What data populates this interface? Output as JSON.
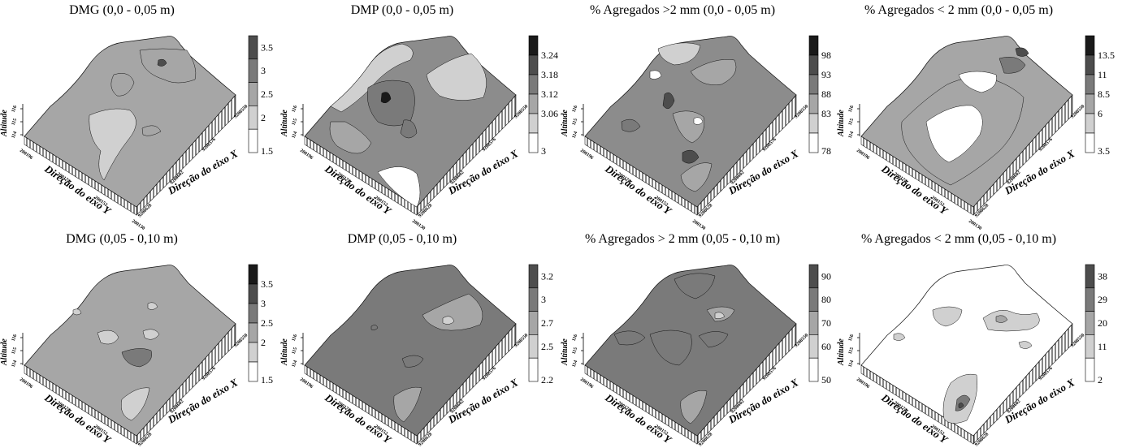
{
  "chart_data": [
    {
      "type": "heatmap",
      "title": "DMG (0,0 - 0,05 m)",
      "legend_values": [
        "3.5",
        "3",
        "2.5",
        "2",
        "1.5"
      ],
      "legend_colors": [
        "#4d4d4d",
        "#7a7a7a",
        "#a6a6a6",
        "#d0d0d0",
        "#ffffff"
      ],
      "base_color": "#a6a6a6",
      "x_axis": {
        "label": "Direção do eixo X",
        "ticks": [
          "9208628",
          "9208602",
          "9208576",
          "9208550"
        ]
      },
      "y_axis": {
        "label": "Direção do eixo Y",
        "ticks": [
          "200196",
          "200174",
          "200152",
          "200130"
        ]
      },
      "z_axis": {
        "label": "Altitude",
        "ticks": [
          "114",
          "115",
          "116"
        ]
      }
    },
    {
      "type": "heatmap",
      "title": "DMP (0,0 - 0,05 m)",
      "legend_values": [
        "3.24",
        "3.18",
        "3.12",
        "3.06",
        "3"
      ],
      "legend_colors": [
        "#1a1a1a",
        "#4d4d4d",
        "#7a7a7a",
        "#a6a6a6",
        "#d0d0d0",
        "#ffffff"
      ],
      "base_color": "#8c8c8c",
      "x_axis": {
        "label": "Direção do eixo X",
        "ticks": [
          "9208628",
          "9208602",
          "9208576",
          "9208550"
        ]
      },
      "y_axis": {
        "label": "Direção do eixo Y",
        "ticks": [
          "200196",
          "200174",
          "200152",
          "200130"
        ]
      },
      "z_axis": {
        "label": "Altitude",
        "ticks": [
          "114",
          "115",
          "116"
        ]
      }
    },
    {
      "type": "heatmap",
      "title": "% Agregados >2 mm (0,0 - 0,05 m)",
      "legend_values": [
        "98",
        "93",
        "88",
        "83",
        "78"
      ],
      "legend_colors": [
        "#1a1a1a",
        "#4d4d4d",
        "#7a7a7a",
        "#a6a6a6",
        "#d0d0d0",
        "#ffffff"
      ],
      "base_color": "#8c8c8c",
      "x_axis": {
        "label": "Direção do eixo X",
        "ticks": [
          "9208628",
          "9208602",
          "9208576",
          "9208550"
        ]
      },
      "y_axis": {
        "label": "Direção do eixo Y",
        "ticks": [
          "200196",
          "200174",
          "200152",
          "200130"
        ]
      },
      "z_axis": {
        "label": "Altitude",
        "ticks": [
          "114",
          "115",
          "116"
        ]
      }
    },
    {
      "type": "heatmap",
      "title": "% Agregados < 2 mm (0,0 - 0,05 m)",
      "legend_values": [
        "13.5",
        "11",
        "8.5",
        "6",
        "3.5"
      ],
      "legend_colors": [
        "#1a1a1a",
        "#4d4d4d",
        "#7a7a7a",
        "#a6a6a6",
        "#d0d0d0",
        "#ffffff"
      ],
      "base_color": "#a6a6a6",
      "x_axis": {
        "label": "Direção do eixo X",
        "ticks": [
          "9208628",
          "9208602",
          "9208576",
          "9208550"
        ]
      },
      "y_axis": {
        "label": "Direção do eixo Y",
        "ticks": [
          "200196",
          "200174",
          "200152",
          "200130"
        ]
      },
      "z_axis": {
        "label": "Altitude",
        "ticks": [
          "114",
          "115",
          "116"
        ]
      }
    },
    {
      "type": "heatmap",
      "title": "DMG (0,05 - 0,10 m)",
      "legend_values": [
        "3.5",
        "3",
        "2.5",
        "2",
        "1.5"
      ],
      "legend_colors": [
        "#1a1a1a",
        "#4d4d4d",
        "#7a7a7a",
        "#a6a6a6",
        "#d0d0d0",
        "#ffffff"
      ],
      "base_color": "#a6a6a6",
      "x_axis": {
        "label": "Direção do eixo X",
        "ticks": [
          "9208628",
          "9208602",
          "9208576",
          "9208550"
        ]
      },
      "y_axis": {
        "label": "Direção do eixo Y",
        "ticks": [
          "200196",
          "200174",
          "200152",
          "200130"
        ]
      },
      "z_axis": {
        "label": "Altitude",
        "ticks": [
          "114",
          "115",
          "116"
        ]
      }
    },
    {
      "type": "heatmap",
      "title": "DMP (0,05 - 0,10 m)",
      "legend_values": [
        "3.2",
        "3",
        "2.7",
        "2.5",
        "2.2"
      ],
      "legend_colors": [
        "#4d4d4d",
        "#7a7a7a",
        "#a6a6a6",
        "#d0d0d0",
        "#ffffff"
      ],
      "base_color": "#7a7a7a",
      "x_axis": {
        "label": "Direção do eixo X",
        "ticks": [
          "9208628",
          "9208602",
          "9208576",
          "9208550"
        ]
      },
      "y_axis": {
        "label": "Direção do eixo Y",
        "ticks": [
          "200196",
          "200174",
          "200152",
          "200130"
        ]
      },
      "z_axis": {
        "label": "Altitude",
        "ticks": [
          "114",
          "115",
          "116"
        ]
      }
    },
    {
      "type": "heatmap",
      "title": "% Agregados > 2 mm (0,05 - 0,10 m)",
      "legend_values": [
        "90",
        "80",
        "70",
        "60",
        "50"
      ],
      "legend_colors": [
        "#4d4d4d",
        "#7a7a7a",
        "#a6a6a6",
        "#d0d0d0",
        "#ffffff"
      ],
      "base_color": "#7a7a7a",
      "x_axis": {
        "label": "Direção do eixo X",
        "ticks": [
          "9208628",
          "9208602",
          "9208576",
          "9208550"
        ]
      },
      "y_axis": {
        "label": "Direção do eixo Y",
        "ticks": [
          "200196",
          "200174",
          "200152",
          "200130"
        ]
      },
      "z_axis": {
        "label": "Altitude",
        "ticks": [
          "114",
          "115",
          "116"
        ]
      }
    },
    {
      "type": "heatmap",
      "title": "% Agregados < 2 mm (0,05 - 0,10 m)",
      "legend_values": [
        "38",
        "29",
        "20",
        "11",
        "2"
      ],
      "legend_colors": [
        "#4d4d4d",
        "#7a7a7a",
        "#a6a6a6",
        "#d0d0d0",
        "#ffffff"
      ],
      "base_color": "#ffffff",
      "x_axis": {
        "label": "Direção do eixo X",
        "ticks": [
          "9208628",
          "9208602",
          "9208576",
          "9208550"
        ]
      },
      "y_axis": {
        "label": "Direção do eixo Y",
        "ticks": [
          "200196",
          "200174",
          "200152",
          "200130"
        ]
      },
      "z_axis": {
        "label": "Altitude",
        "ticks": [
          "114",
          "115",
          "116"
        ]
      }
    }
  ]
}
